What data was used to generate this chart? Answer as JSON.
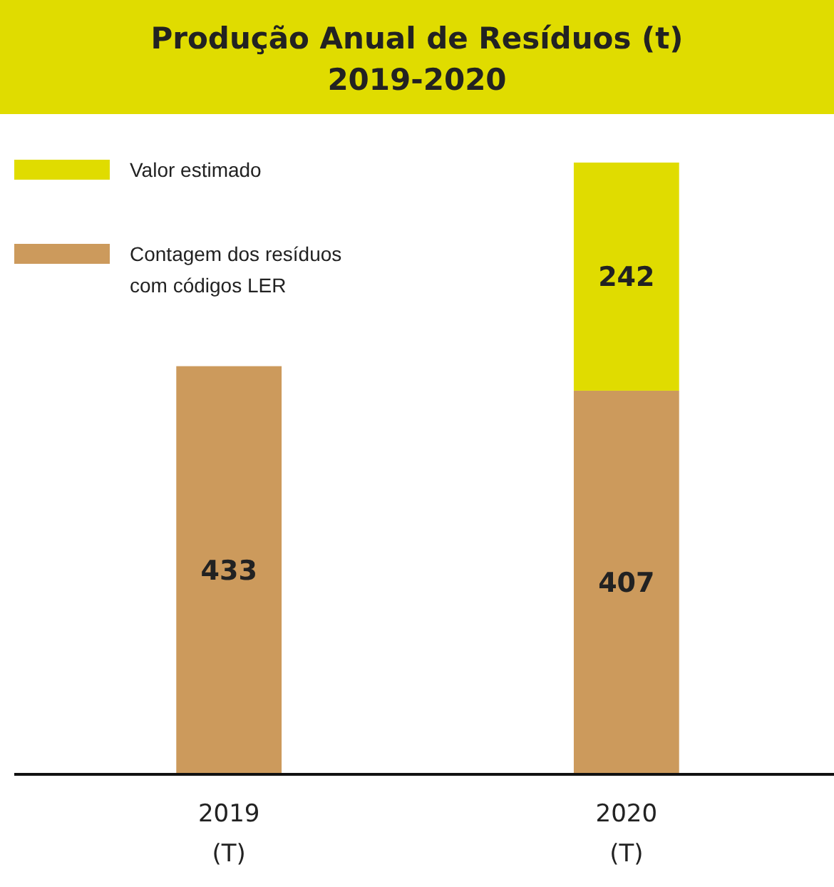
{
  "chart_data": {
    "type": "bar",
    "title": "Produção Anual de Resíduos (t)\n2019-2020",
    "categories": [
      "2019\n(T)",
      "2020\n(T)"
    ],
    "stacked": true,
    "data_labels": true,
    "legend": "top left",
    "series": [
      {
        "name": "Contagem dos resíduos\ncom códigos LER",
        "color": "#cc9a5c",
        "values": [
          433,
          407
        ]
      },
      {
        "name": "Valor estimado",
        "color": "#e0dc00",
        "values": [
          null,
          242
        ]
      }
    ]
  }
}
